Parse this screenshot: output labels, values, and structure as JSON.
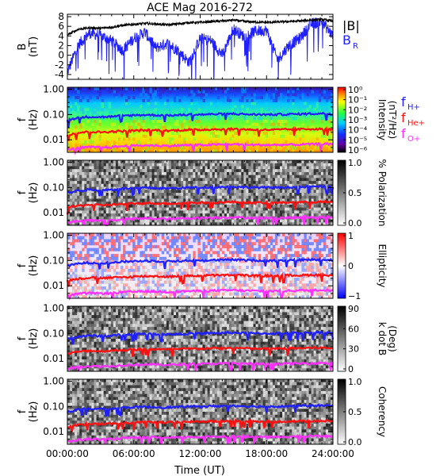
{
  "title": "ACE Mag 2016-272",
  "xlabel": "Time (UT)",
  "x_ticks": [
    "00:00:00",
    "06:00:00",
    "12:00:00",
    "18:00:00",
    "24:00:00"
  ],
  "colors": {
    "B": "#000000",
    "BR": "#1f1fff",
    "H": "#1f1fff",
    "He": "#ff1010",
    "O": "#ff30ff"
  },
  "chart_data": [
    {
      "type": "line",
      "ylabel_top": "B",
      "ylabel_bottom": "(nT)",
      "ylim": [
        -5,
        8.5
      ],
      "y_ticks": [
        -4,
        -2,
        0,
        2,
        4,
        6,
        8
      ],
      "xlim": [
        0,
        24
      ],
      "legend": [
        "|B|",
        "B",
        "R"
      ],
      "series": [
        {
          "name": "|B|",
          "color": "#000000",
          "x": [
            0,
            1,
            2,
            3,
            4,
            5,
            6,
            7,
            8,
            9,
            10,
            11,
            12,
            13,
            14,
            15,
            16,
            17,
            18,
            19,
            20,
            21,
            22,
            23,
            24
          ],
          "values": [
            4.2,
            5.4,
            5.7,
            5.6,
            5.8,
            6.2,
            6.4,
            6.6,
            6.5,
            6.3,
            6.5,
            6.8,
            6.8,
            7.0,
            7.1,
            7.3,
            7.0,
            6.9,
            6.8,
            6.9,
            7.0,
            7.1,
            7.3,
            7.4,
            7.1
          ]
        },
        {
          "name": "BR",
          "color": "#1f1fff",
          "x": [
            0,
            1,
            2,
            3,
            4,
            5,
            6,
            7,
            8,
            9,
            10,
            11,
            12,
            13,
            14,
            15,
            16,
            17,
            18,
            19,
            20,
            21,
            22,
            23,
            24
          ],
          "values": [
            -3.5,
            2.2,
            4.6,
            4.1,
            3.0,
            1.0,
            3.5,
            4.8,
            1.5,
            2.5,
            1.0,
            -1.5,
            3.5,
            3.0,
            0.0,
            5.5,
            3.8,
            5.0,
            5.2,
            -1.0,
            2.0,
            3.5,
            6.5,
            7.0,
            4.0
          ]
        }
      ]
    },
    {
      "type": "heatmap",
      "ylabel_top": "f",
      "ylabel_bottom": "(Hz)",
      "y_ticks": [
        "1.00",
        "0.10",
        "0.01"
      ],
      "colorbar_label_top": "Intensity",
      "colorbar_label_bottom": "(nT²/Hz)",
      "colorbar_ticks": [
        "10⁰",
        "10⁻¹",
        "10⁻²",
        "10⁻³",
        "10⁻⁴",
        "10⁻⁵",
        "10⁻⁶"
      ],
      "colormap": "rainbow",
      "legend": [
        "f",
        "H+",
        "f",
        "He+",
        "f",
        "O+"
      ]
    },
    {
      "type": "heatmap",
      "ylabel_top": "f",
      "ylabel_bottom": "(Hz)",
      "y_ticks": [
        "1.00",
        "0.10",
        "0.01"
      ],
      "colorbar_label": "% Polarization",
      "colorbar_ticks": [
        "1.0",
        "0.5",
        "0.0"
      ],
      "colormap": "gray"
    },
    {
      "type": "heatmap",
      "ylabel_top": "f",
      "ylabel_bottom": "(Hz)",
      "y_ticks": [
        "1.00",
        "0.10",
        "0.01"
      ],
      "colorbar_label": "Ellipticity",
      "colorbar_ticks": [
        "1",
        "0",
        "−1"
      ],
      "colormap": "bwr"
    },
    {
      "type": "heatmap",
      "ylabel_top": "f",
      "ylabel_bottom": "(Hz)",
      "y_ticks": [
        "1.00",
        "0.10",
        "0.01"
      ],
      "colorbar_label_top": "k dot B",
      "colorbar_label_bottom": "(Deg)",
      "colorbar_ticks": [
        "90",
        "60",
        "30",
        "0"
      ],
      "colormap": "gray"
    },
    {
      "type": "heatmap",
      "ylabel_top": "f",
      "ylabel_bottom": "(Hz)",
      "y_ticks": [
        "1.00",
        "0.10",
        "0.01"
      ],
      "colorbar_label": "Coherency",
      "colorbar_ticks": [
        "1.0",
        "0.5",
        "0.0"
      ],
      "colormap": "gray"
    }
  ],
  "gyro_lines": {
    "x": [
      0,
      1,
      2,
      3,
      4,
      5,
      6,
      7,
      8,
      9,
      10,
      11,
      12,
      13,
      14,
      15,
      16,
      17,
      18,
      19,
      20,
      21,
      22,
      23,
      24
    ],
    "H": [
      0.06,
      0.076,
      0.082,
      0.08,
      0.082,
      0.09,
      0.094,
      0.097,
      0.095,
      0.092,
      0.095,
      0.1,
      0.1,
      0.103,
      0.105,
      0.108,
      0.103,
      0.101,
      0.1,
      0.101,
      0.103,
      0.105,
      0.108,
      0.11,
      0.105
    ],
    "He": [
      0.016,
      0.019,
      0.021,
      0.02,
      0.021,
      0.022,
      0.023,
      0.024,
      0.024,
      0.023,
      0.024,
      0.025,
      0.025,
      0.026,
      0.026,
      0.027,
      0.026,
      0.025,
      0.025,
      0.025,
      0.026,
      0.026,
      0.027,
      0.027,
      0.026
    ],
    "O": [
      0.004,
      0.0048,
      0.0051,
      0.005,
      0.0051,
      0.0056,
      0.0058,
      0.006,
      0.0059,
      0.0057,
      0.0059,
      0.0062,
      0.0062,
      0.0064,
      0.0065,
      0.0067,
      0.0064,
      0.0063,
      0.0062,
      0.0063,
      0.0064,
      0.0065,
      0.0067,
      0.0069,
      0.0066
    ]
  }
}
